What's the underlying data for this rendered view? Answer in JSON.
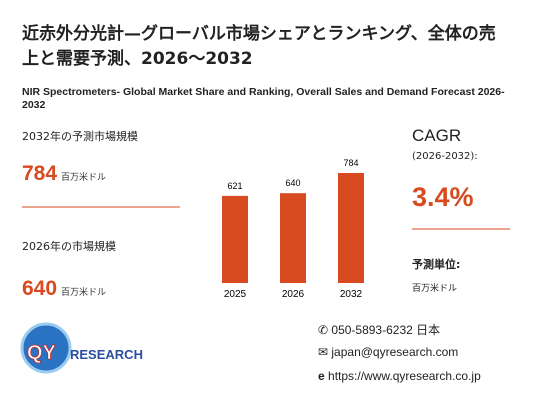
{
  "title": "近赤外分光計—グローバル市場シェアとランキング、全体の売上と需要予測、2026～2032",
  "subtitle": "NIR Spectrometers- Global Market Share and Ranking, Overall Sales and Demand Forecast 2026-2032",
  "forecast": {
    "label": "2032年の予測市場規模",
    "value": 784,
    "unit": "百万米ドル"
  },
  "current": {
    "label": "2026年の市場規模",
    "value": 640,
    "unit": "百万米ドル"
  },
  "cagr": {
    "label": "CAGR",
    "period": "(2026-2032):",
    "value": "3.4%"
  },
  "forecast_unit": {
    "label": "予測単位:",
    "value": "百万米ドル"
  },
  "logo": {
    "qy": "QY",
    "research": "RESEARCH"
  },
  "contact": {
    "phone": "050-5893-6232 日本",
    "email": "japan@qyresearch.com",
    "web": "https://www.qyresearch.co.jp"
  },
  "chart_data": {
    "type": "bar",
    "categories": [
      "2025",
      "2026",
      "2032"
    ],
    "values": [
      621,
      640,
      784
    ],
    "color": "#d84a1f"
  }
}
